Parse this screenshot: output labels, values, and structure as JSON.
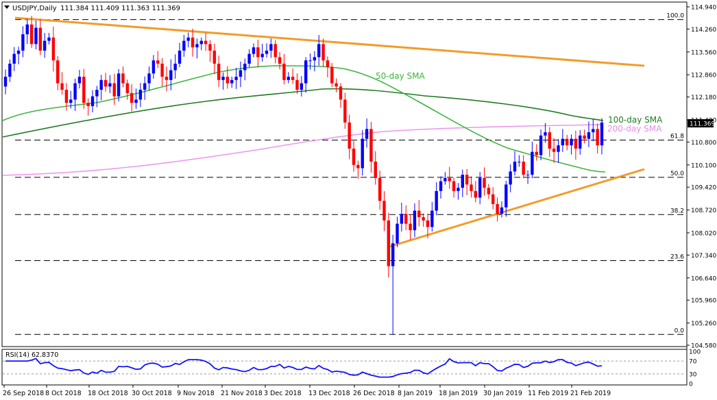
{
  "header": {
    "symbol": "USDJPY,Daily",
    "ohlc": "111.384 111.409 111.363 111.369"
  },
  "chart_data": {
    "type": "candlestick",
    "title": "USDJPY,Daily",
    "ylim": [
      104.78,
      114.94
    ],
    "y_ticks": [
      "114.940",
      "114.260",
      "113.560",
      "112.860",
      "112.180",
      "111.480",
      "110.800",
      "110.100",
      "109.420",
      "108.720",
      "108.020",
      "107.340",
      "106.640",
      "105.960",
      "105.260",
      "104.580"
    ],
    "x_ticks": [
      "26 Sep 2018",
      "8 Oct 2018",
      "18 Oct 2018",
      "30 Oct 2018",
      "9 Nov 2018",
      "21 Nov 2018",
      "3 Dec 2018",
      "13 Dec 2018",
      "26 Dec 2018",
      "8 Jan 2019",
      "18 Jan 2019",
      "30 Jan 2019",
      "11 Feb 2019",
      "21 Feb 2019"
    ],
    "current_price": "111.369",
    "fib_levels": [
      {
        "label": "100.0",
        "value": 114.55
      },
      {
        "label": "61.8",
        "value": 110.86
      },
      {
        "label": "50.0",
        "value": 109.72
      },
      {
        "label": "38.2",
        "value": 108.58
      },
      {
        "label": "23.6",
        "value": 107.17
      },
      {
        "label": "0.0",
        "value": 104.91
      }
    ],
    "annotations": [
      "50-day SMA",
      "100-day SMA",
      "200-day SMA"
    ],
    "trendlines": [
      {
        "name": "resistance",
        "points": [
          [
            "26 Sep 2018",
            114.55
          ],
          [
            "28 Feb 2019",
            113.16
          ]
        ]
      },
      {
        "name": "support",
        "points": [
          [
            "3 Jan 2019",
            107.68
          ],
          [
            "28 Feb 2019",
            109.96
          ]
        ]
      }
    ],
    "close_values": [
      112.8,
      113.2,
      113.5,
      113.6,
      114.1,
      114.4,
      113.8,
      114.3,
      113.6,
      113.9,
      114.0,
      113.3,
      112.6,
      112.4,
      112.0,
      112.1,
      112.6,
      112.8,
      112.0,
      111.9,
      112.2,
      112.4,
      112.7,
      112.5,
      112.6,
      112.2,
      112.9,
      112.6,
      112.3,
      112.0,
      112.1,
      112.4,
      112.6,
      112.9,
      113.3,
      113.2,
      112.8,
      112.7,
      113.0,
      113.2,
      113.6,
      113.9,
      114.0,
      113.7,
      113.8,
      113.9,
      113.8,
      113.6,
      113.2,
      112.7,
      112.8,
      112.6,
      112.7,
      112.8,
      113.0,
      113.2,
      113.5,
      113.7,
      113.4,
      113.5,
      113.6,
      113.8,
      113.4,
      113.2,
      112.7,
      112.8,
      112.7,
      112.4,
      112.6,
      113.3,
      113.3,
      113.4,
      113.8,
      113.3,
      113.1,
      112.6,
      112.5,
      112.1,
      111.4,
      110.6,
      110.1,
      110.0,
      110.9,
      111.2,
      110.2,
      109.7,
      109.0,
      108.4,
      107.0,
      107.7,
      108.3,
      108.6,
      108.3,
      108.1,
      108.7,
      108.5,
      108.4,
      108.2,
      108.7,
      109.3,
      109.6,
      109.7,
      109.6,
      109.3,
      109.4,
      109.8,
      109.5,
      109.3,
      109.1,
      109.7,
      109.4,
      109.2,
      108.9,
      108.6,
      108.8,
      109.5,
      109.9,
      110.2,
      110.2,
      109.8,
      109.8,
      110.5,
      110.4,
      111.0,
      111.1,
      110.6,
      110.5,
      110.7,
      110.9,
      110.7,
      110.9,
      110.6,
      111.0,
      110.9,
      111.1,
      111.2,
      110.7,
      111.4
    ],
    "rsi": {
      "label": "RSI(14) 62.8370",
      "ylim": [
        0,
        100
      ],
      "ticks": [
        "100",
        "70",
        "30",
        "0"
      ],
      "levels": [
        70,
        30
      ]
    }
  }
}
